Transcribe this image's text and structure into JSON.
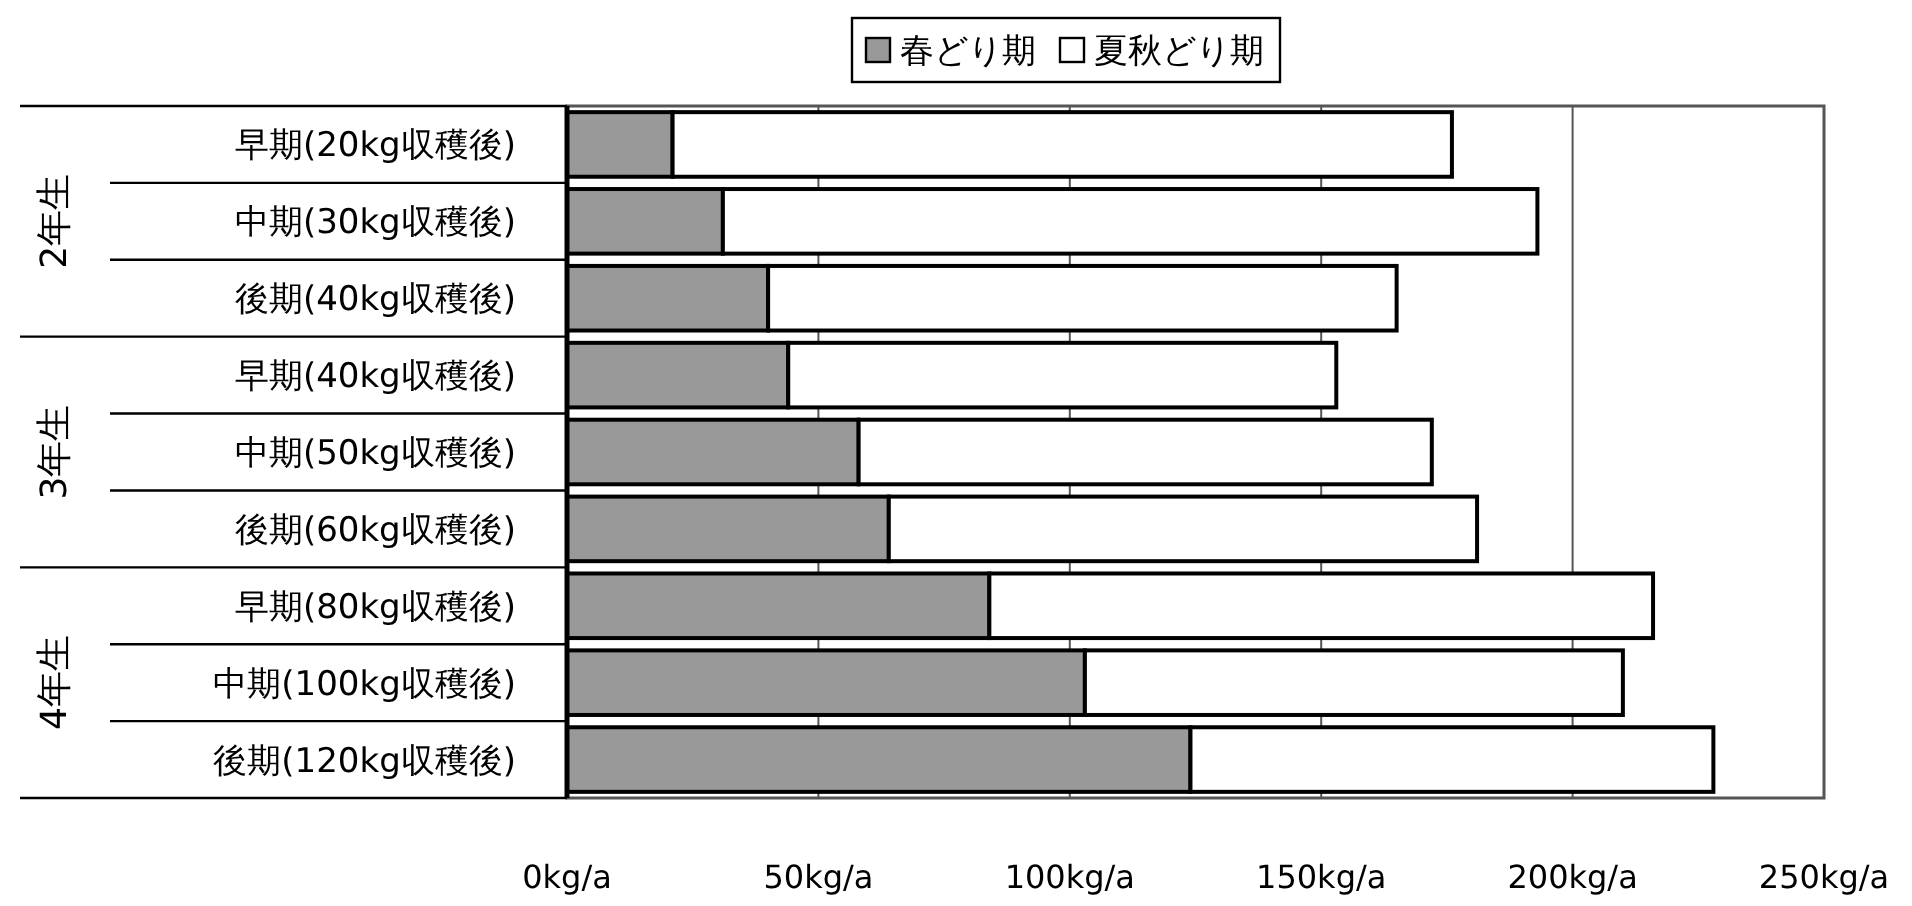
{
  "chart_data": {
    "type": "bar",
    "orientation": "horizontal",
    "stacked": true,
    "categories": [
      "早期(20kg収穫後)",
      "中期(30kg収穫後)",
      "後期(40kg収穫後)",
      "早期(40kg収穫後)",
      "中期(50kg収穫後)",
      "後期(60kg収穫後)",
      "早期(80kg収穫後)",
      "中期(100kg収穫後)",
      "後期(120kg収穫後)"
    ],
    "series": [
      {
        "name": "春どり期",
        "color": "#999999",
        "values": [
          21,
          31,
          40,
          44,
          58,
          64,
          84,
          103,
          124
        ]
      },
      {
        "name": "夏秋どり期",
        "color": "#ffffff",
        "values": [
          155,
          162,
          125,
          109,
          114,
          117,
          132,
          107,
          104
        ]
      }
    ],
    "xlim": [
      0,
      250
    ],
    "xticks": [
      {
        "value": 0,
        "label": "0kg/a"
      },
      {
        "value": 50,
        "label": "50kg/a"
      },
      {
        "value": 100,
        "label": "100kg/a"
      },
      {
        "value": 150,
        "label": "150kg/a"
      },
      {
        "value": 200,
        "label": "200kg/a"
      },
      {
        "value": 250,
        "label": "250kg/a"
      }
    ],
    "annotations": [
      "2年生",
      "3年生",
      "4年生"
    ],
    "grid": "x",
    "legend": "top"
  }
}
